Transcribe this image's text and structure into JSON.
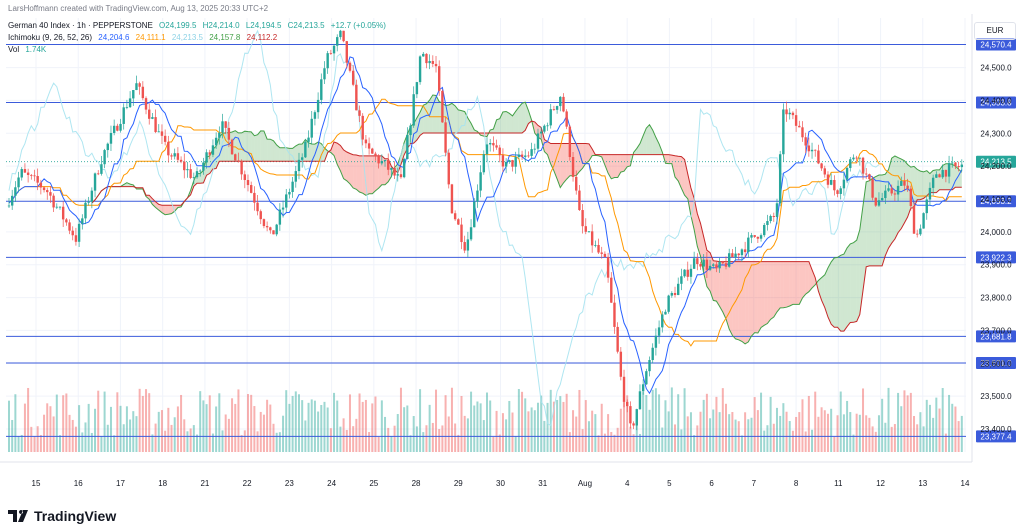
{
  "header": {
    "creator": "LarsHoffmann created with TradingView.com, Aug 13, 2025 20:33 UTC+2",
    "symbol": "German 40 Index · 1h · PEPPERSTONE",
    "ohlc": {
      "o": "O24,199.5",
      "h": "H24,214.0",
      "l": "L24,194.5",
      "c": "C24,213.5",
      "chg": "+12.7 (+0.05%)"
    },
    "ichimoku_label": "Ichimoku (9, 26, 52, 26)",
    "ichimoku_values": [
      "24,204.6",
      "24,111.1",
      "24,213.5",
      "24,157.8",
      "24,112.2"
    ],
    "vol_label": "Vol",
    "vol_value": "1.74K"
  },
  "currency": "EUR",
  "brand": "TradingView",
  "colors": {
    "up": "#26a69a",
    "down": "#ef5350",
    "tenkan": "#2962ff",
    "kijun": "#ff9800",
    "chikou": "#a6e3ef",
    "spanA": "#43a047",
    "spanB": "#c62828",
    "hline": "#3b5bdb",
    "last": "#26a69a"
  },
  "chart_data": {
    "type": "candlestick",
    "ylim": [
      23330,
      24590
    ],
    "y_ticks": [
      "24,500.0",
      "24,400.0",
      "24,300.0",
      "24,200.0",
      "24,100.0",
      "24,000.0",
      "23,900.0",
      "23,800.0",
      "23,700.0",
      "23,600.0",
      "23,500.0",
      "23,400.0"
    ],
    "y_tick_values": [
      24500,
      24400,
      24300,
      24200,
      24100,
      24000,
      23900,
      23800,
      23700,
      23600,
      23500,
      23400
    ],
    "x_labels": [
      "15",
      "16",
      "17",
      "18",
      "21",
      "22",
      "23",
      "24",
      "25",
      "28",
      "29",
      "30",
      "31",
      "Aug",
      "4",
      "5",
      "6",
      "7",
      "8",
      "11",
      "12",
      "13",
      "14"
    ],
    "horizontal_levels": [
      {
        "value": 24570.4,
        "label": "24,570.4"
      },
      {
        "value": 24393.8,
        "label": "24,393.8"
      },
      {
        "value": 24093.2,
        "label": "24,093.2"
      },
      {
        "value": 23922.3,
        "label": "23,922.3"
      },
      {
        "value": 23681.8,
        "label": "23,681.8"
      },
      {
        "value": 23601.0,
        "label": "23,601.0"
      },
      {
        "value": 23377.4,
        "label": "23,377.4"
      }
    ],
    "last_price": {
      "value": 24213.5,
      "label": "24,213.5"
    },
    "path_anchors": [
      [
        0,
        24080
      ],
      [
        15,
        24180
      ],
      [
        40,
        24130
      ],
      [
        70,
        23980
      ],
      [
        95,
        24220
      ],
      [
        130,
        24450
      ],
      [
        160,
        24250
      ],
      [
        190,
        24160
      ],
      [
        215,
        24330
      ],
      [
        240,
        24160
      ],
      [
        265,
        23980
      ],
      [
        300,
        24260
      ],
      [
        320,
        24520
      ],
      [
        335,
        24600
      ],
      [
        360,
        24250
      ],
      [
        380,
        24200
      ],
      [
        395,
        24150
      ],
      [
        415,
        24550
      ],
      [
        430,
        24500
      ],
      [
        445,
        24080
      ],
      [
        460,
        23950
      ],
      [
        480,
        24280
      ],
      [
        500,
        24200
      ],
      [
        525,
        24240
      ],
      [
        555,
        24420
      ],
      [
        575,
        24020
      ],
      [
        600,
        23900
      ],
      [
        615,
        23550
      ],
      [
        625,
        23390
      ],
      [
        640,
        23580
      ],
      [
        660,
        23780
      ],
      [
        690,
        23920
      ],
      [
        710,
        23880
      ],
      [
        740,
        23960
      ],
      [
        770,
        24050
      ],
      [
        778,
        24380
      ],
      [
        800,
        24280
      ],
      [
        830,
        24120
      ],
      [
        850,
        24250
      ],
      [
        870,
        24090
      ],
      [
        900,
        24150
      ],
      [
        910,
        23980
      ],
      [
        930,
        24180
      ],
      [
        955,
        24200
      ],
      [
        965,
        24213
      ]
    ],
    "volume_note": "Volume histogram shown at bottom of chart"
  }
}
